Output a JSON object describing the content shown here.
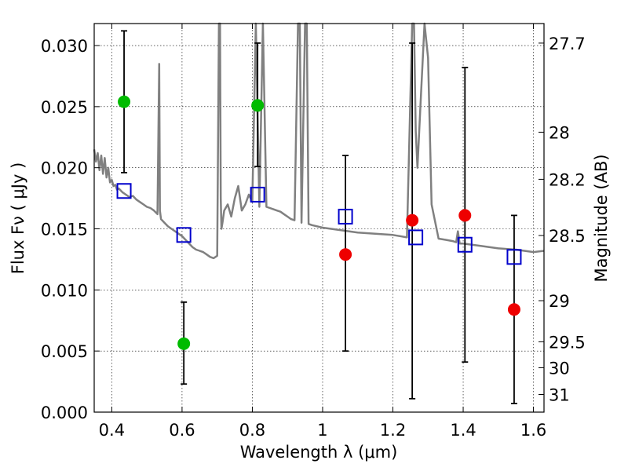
{
  "chart_data": {
    "type": "scatter",
    "xlabel": "Wavelength  λ (μm)",
    "ylabel": "Flux  Fν  ( μJy )",
    "y2label": "Magnitude (AB)",
    "xlim": [
      0.35,
      1.63
    ],
    "ylim": [
      0.0,
      0.0318
    ],
    "grid": true,
    "x_ticks": [
      0.4,
      0.6,
      0.8,
      1.0,
      1.2,
      1.4,
      1.6
    ],
    "x_tick_labels": [
      "0.4",
      "0.6",
      "0.8",
      "1",
      "1.2",
      "1.4",
      "1.6"
    ],
    "y_ticks": [
      0.0,
      0.005,
      0.01,
      0.015,
      0.02,
      0.025,
      0.03
    ],
    "y_tick_labels": [
      "0.000",
      "0.005",
      "0.010",
      "0.015",
      "0.020",
      "0.025",
      "0.030"
    ],
    "y2_ticks": [
      27.7,
      28,
      28.2,
      28.5,
      29,
      29.5,
      30,
      31
    ],
    "y2_tick_labels": [
      "27.7",
      "28",
      "28.2",
      "28.5",
      "29",
      "29.5",
      "30",
      "31"
    ],
    "colors": {
      "spectrum": "#808080",
      "detections": "#00bb00",
      "upper": "#ee0000",
      "model": "#0000cc",
      "errorbar": "#000000"
    },
    "series": [
      {
        "kind": "line",
        "x": [
          0.35,
          0.355,
          0.36,
          0.365,
          0.37,
          0.375,
          0.38,
          0.385,
          0.39,
          0.395,
          0.4,
          0.405,
          0.41,
          0.415,
          0.42,
          0.43,
          0.44,
          0.45,
          0.46,
          0.47,
          0.48,
          0.49,
          0.5,
          0.51,
          0.52,
          0.53,
          0.535,
          0.537,
          0.54,
          0.55,
          0.56,
          0.57,
          0.58,
          0.59,
          0.6,
          0.61,
          0.62,
          0.63,
          0.64,
          0.65,
          0.66,
          0.67,
          0.68,
          0.69,
          0.7,
          0.705,
          0.708,
          0.71,
          0.712,
          0.715,
          0.72,
          0.73,
          0.74,
          0.75,
          0.76,
          0.77,
          0.78,
          0.79,
          0.8,
          0.81,
          0.82,
          0.83,
          0.84,
          0.85,
          0.86,
          0.87,
          0.88,
          0.89,
          0.9,
          0.91,
          0.92,
          0.93,
          0.935,
          0.94,
          0.95,
          0.955,
          0.96,
          0.97,
          1.0,
          1.05,
          1.1,
          1.15,
          1.2,
          1.22,
          1.24,
          1.255,
          1.26,
          1.265,
          1.27,
          1.28,
          1.29,
          1.3,
          1.31,
          1.33,
          1.35,
          1.37,
          1.38,
          1.385,
          1.39,
          1.4,
          1.45,
          1.5,
          1.55,
          1.6,
          1.63
        ],
        "y": [
          0.0215,
          0.0205,
          0.0212,
          0.0198,
          0.021,
          0.0195,
          0.0208,
          0.0192,
          0.02,
          0.0188,
          0.019,
          0.0185,
          0.0186,
          0.0182,
          0.0183,
          0.018,
          0.0178,
          0.0176,
          0.0177,
          0.0174,
          0.0172,
          0.017,
          0.0168,
          0.0167,
          0.0165,
          0.0162,
          0.0285,
          0.0165,
          0.0158,
          0.0155,
          0.0152,
          0.015,
          0.0148,
          0.0146,
          0.0144,
          0.0141,
          0.0138,
          0.0135,
          0.0133,
          0.0132,
          0.0131,
          0.0129,
          0.0127,
          0.0126,
          0.0128,
          0.0318,
          0.0318,
          0.0175,
          0.015,
          0.0155,
          0.0165,
          0.017,
          0.016,
          0.0175,
          0.0185,
          0.0165,
          0.017,
          0.0178,
          0.0172,
          0.0318,
          0.0168,
          0.0318,
          0.0168,
          0.0167,
          0.0166,
          0.0165,
          0.0164,
          0.0162,
          0.016,
          0.0158,
          0.0157,
          0.0318,
          0.0318,
          0.0155,
          0.0318,
          0.0318,
          0.0154,
          0.0153,
          0.0151,
          0.0149,
          0.0147,
          0.0146,
          0.0145,
          0.0144,
          0.0143,
          0.0318,
          0.0318,
          0.023,
          0.02,
          0.026,
          0.0318,
          0.029,
          0.017,
          0.0142,
          0.0141,
          0.014,
          0.0139,
          0.0148,
          0.0138,
          0.0138,
          0.0136,
          0.0134,
          0.0133,
          0.0131,
          0.0132
        ]
      },
      {
        "kind": "errorbar",
        "x": [
          0.435,
          0.605,
          0.815
        ],
        "y": [
          0.0254,
          0.0056,
          0.0251
        ],
        "yerr_low": [
          0.0058,
          0.0033,
          0.005
        ],
        "yerr_high": [
          0.0058,
          0.0034,
          0.0051
        ]
      },
      {
        "kind": "errorbar",
        "x": [
          1.065,
          1.255,
          1.405,
          1.545
        ],
        "y": [
          0.0129,
          0.0157,
          0.0161,
          0.0084
        ],
        "yerr_low": [
          0.0079,
          0.0146,
          0.012,
          0.0077
        ],
        "yerr_high": [
          0.0081,
          0.0145,
          0.0121,
          0.0077
        ]
      },
      {
        "kind": "scatter",
        "x": [
          0.435,
          0.605,
          0.815,
          1.065,
          1.265,
          1.405,
          1.545
        ],
        "y": [
          0.0181,
          0.0145,
          0.0178,
          0.016,
          0.0143,
          0.0137,
          0.0127
        ]
      }
    ]
  }
}
